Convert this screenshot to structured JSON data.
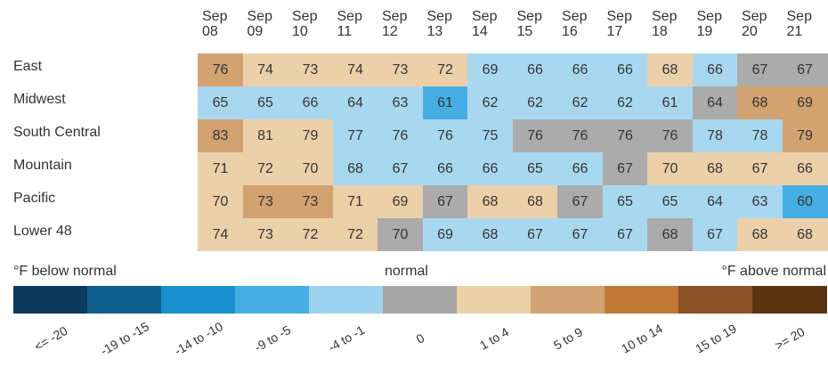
{
  "chart_data": {
    "type": "heatmap",
    "categories": [
      "Sep 08",
      "Sep 09",
      "Sep 10",
      "Sep 11",
      "Sep 12",
      "Sep 13",
      "Sep 14",
      "Sep 15",
      "Sep 16",
      "Sep 17",
      "Sep 18",
      "Sep 19",
      "Sep 20",
      "Sep 21"
    ],
    "series": [
      {
        "name": "East",
        "values": [
          76,
          74,
          73,
          74,
          73,
          72,
          69,
          66,
          66,
          66,
          68,
          66,
          67,
          67
        ],
        "colors": [
          "#d3a271",
          "#ecd0a9",
          "#ecd0a9",
          "#ecd0a9",
          "#ecd0a9",
          "#ecd0a9",
          "#a8d8f0",
          "#a8d8f0",
          "#a8d8f0",
          "#a8d8f0",
          "#ecd0a9",
          "#a8d8f0",
          "#ababab",
          "#ababab"
        ]
      },
      {
        "name": "Midwest",
        "values": [
          65,
          65,
          66,
          64,
          63,
          61,
          62,
          62,
          62,
          62,
          61,
          64,
          68,
          69
        ],
        "colors": [
          "#a8d8f0",
          "#a8d8f0",
          "#a8d8f0",
          "#a8d8f0",
          "#a8d8f0",
          "#47aee3",
          "#a8d8f0",
          "#a8d8f0",
          "#a8d8f0",
          "#a8d8f0",
          "#a8d8f0",
          "#ababab",
          "#d3a271",
          "#d3a271"
        ]
      },
      {
        "name": "South Central",
        "values": [
          83,
          81,
          79,
          77,
          76,
          76,
          75,
          76,
          76,
          76,
          76,
          78,
          78,
          79
        ],
        "colors": [
          "#d3a271",
          "#ecd0a9",
          "#ecd0a9",
          "#a8d8f0",
          "#a8d8f0",
          "#a8d8f0",
          "#a8d8f0",
          "#ababab",
          "#ababab",
          "#ababab",
          "#ababab",
          "#a8d8f0",
          "#a8d8f0",
          "#d3a271"
        ]
      },
      {
        "name": "Mountain",
        "values": [
          71,
          72,
          70,
          68,
          67,
          66,
          66,
          65,
          66,
          67,
          70,
          68,
          67,
          66
        ],
        "colors": [
          "#ecd0a9",
          "#ecd0a9",
          "#ecd0a9",
          "#a8d8f0",
          "#a8d8f0",
          "#a8d8f0",
          "#a8d8f0",
          "#a8d8f0",
          "#a8d8f0",
          "#ababab",
          "#ecd0a9",
          "#ecd0a9",
          "#ecd0a9",
          "#ecd0a9"
        ]
      },
      {
        "name": "Pacific",
        "values": [
          70,
          73,
          73,
          71,
          69,
          67,
          68,
          68,
          67,
          65,
          65,
          64,
          63,
          60
        ],
        "colors": [
          "#ecd0a9",
          "#d3a271",
          "#d3a271",
          "#ecd0a9",
          "#ecd0a9",
          "#ababab",
          "#ecd0a9",
          "#ecd0a9",
          "#ababab",
          "#a8d8f0",
          "#a8d8f0",
          "#a8d8f0",
          "#a8d8f0",
          "#47aee3"
        ]
      },
      {
        "name": "Lower 48",
        "values": [
          74,
          73,
          72,
          72,
          70,
          69,
          68,
          67,
          67,
          67,
          68,
          67,
          68,
          68
        ],
        "colors": [
          "#ecd0a9",
          "#ecd0a9",
          "#ecd0a9",
          "#ecd0a9",
          "#ababab",
          "#a8d8f0",
          "#a8d8f0",
          "#a8d8f0",
          "#a8d8f0",
          "#a8d8f0",
          "#ababab",
          "#a8d8f0",
          "#ecd0a9",
          "#ecd0a9"
        ]
      }
    ],
    "legend": {
      "title_left": "°F below normal",
      "title_center": "normal",
      "title_right": "°F above normal",
      "bins": [
        {
          "label": "<= -20",
          "color": "#0b3a5c"
        },
        {
          "label": "-19 to -15",
          "color": "#0f5f8f"
        },
        {
          "label": "-14 to -10",
          "color": "#1a8fd0"
        },
        {
          "label": "-9 to -5",
          "color": "#45aee3"
        },
        {
          "label": "-4 to -1",
          "color": "#9dd3ef"
        },
        {
          "label": "0",
          "color": "#a6a6a6"
        },
        {
          "label": "1 to 4",
          "color": "#ecd0a8"
        },
        {
          "label": "5 to 9",
          "color": "#d4a374"
        },
        {
          "label": "10 to 14",
          "color": "#c07a35"
        },
        {
          "label": "15 to 19",
          "color": "#8b5226"
        },
        {
          "label": ">= 20",
          "color": "#5a3412"
        }
      ]
    }
  }
}
